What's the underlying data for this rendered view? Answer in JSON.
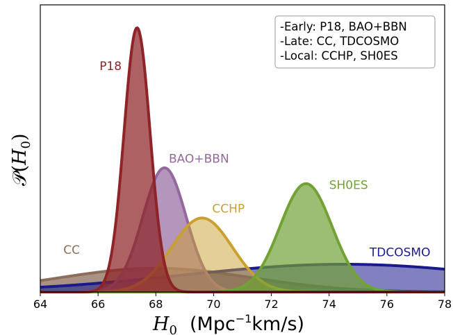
{
  "chart_data": {
    "type": "area",
    "xlim": [
      64,
      78
    ],
    "x_ticks": [
      "64",
      "66",
      "68",
      "70",
      "72",
      "74",
      "76",
      "78"
    ],
    "xlabel": {
      "symbol": "H",
      "subscript": "0",
      "units_prefix": "(Mpc",
      "units_exponent": "−1",
      "units_suffix": "km/s)"
    },
    "ylabel": {
      "symbol": "𝒫(",
      "variable": "H",
      "subscript": "0",
      "close": ")"
    },
    "y_ticks": false,
    "grid": false,
    "series": [
      {
        "name": "CC",
        "mean": 68.0,
        "sigma": 3.3,
        "peak": 0.09,
        "color": "#8c6d5a",
        "fill_opacity": 0.75
      },
      {
        "name": "TDCOSMO",
        "mean": 74.5,
        "sigma": 5.6,
        "peak": 0.105,
        "color": "#1a1a8c",
        "fill_opacity": 0.55
      },
      {
        "name": "BAO+BBN",
        "mean": 68.3,
        "sigma": 0.75,
        "peak": 0.47,
        "color": "#94689e",
        "fill_opacity": 0.7
      },
      {
        "name": "CCHP",
        "mean": 69.6,
        "sigma": 1.05,
        "peak": 0.28,
        "color": "#c9a030",
        "fill_opacity": 0.5
      },
      {
        "name": "SH0ES",
        "mean": 73.2,
        "sigma": 0.9,
        "peak": 0.41,
        "color": "#72a236",
        "fill_opacity": 0.7
      },
      {
        "name": "P18",
        "mean": 67.35,
        "sigma": 0.45,
        "peak": 1.0,
        "color": "#8e2427",
        "fill_opacity": 0.72
      }
    ],
    "labels": [
      {
        "name": "P18",
        "x": 66.05,
        "y": 0.84,
        "anchor": "start",
        "color": "#8e2427"
      },
      {
        "name": "BAO+BBN",
        "x": 68.45,
        "y": 0.49,
        "anchor": "start",
        "color": "#94689e"
      },
      {
        "name": "CCHP",
        "x": 69.95,
        "y": 0.3,
        "anchor": "start",
        "color": "#c9a030"
      },
      {
        "name": "SH0ES",
        "x": 74.0,
        "y": 0.39,
        "anchor": "start",
        "color": "#72a236"
      },
      {
        "name": "TDCOSMO",
        "x": 75.4,
        "y": 0.135,
        "anchor": "start",
        "color": "#1a1a8c"
      },
      {
        "name": "CC",
        "x": 64.8,
        "y": 0.145,
        "anchor": "start",
        "color": "#8c6d5a"
      }
    ],
    "legend_box": {
      "placement": "top-right",
      "lines": [
        "-Early: P18, BAO+BBN",
        "-Late: CC, TDCOSMO",
        "-Local: CCHP, SH0ES"
      ]
    }
  }
}
